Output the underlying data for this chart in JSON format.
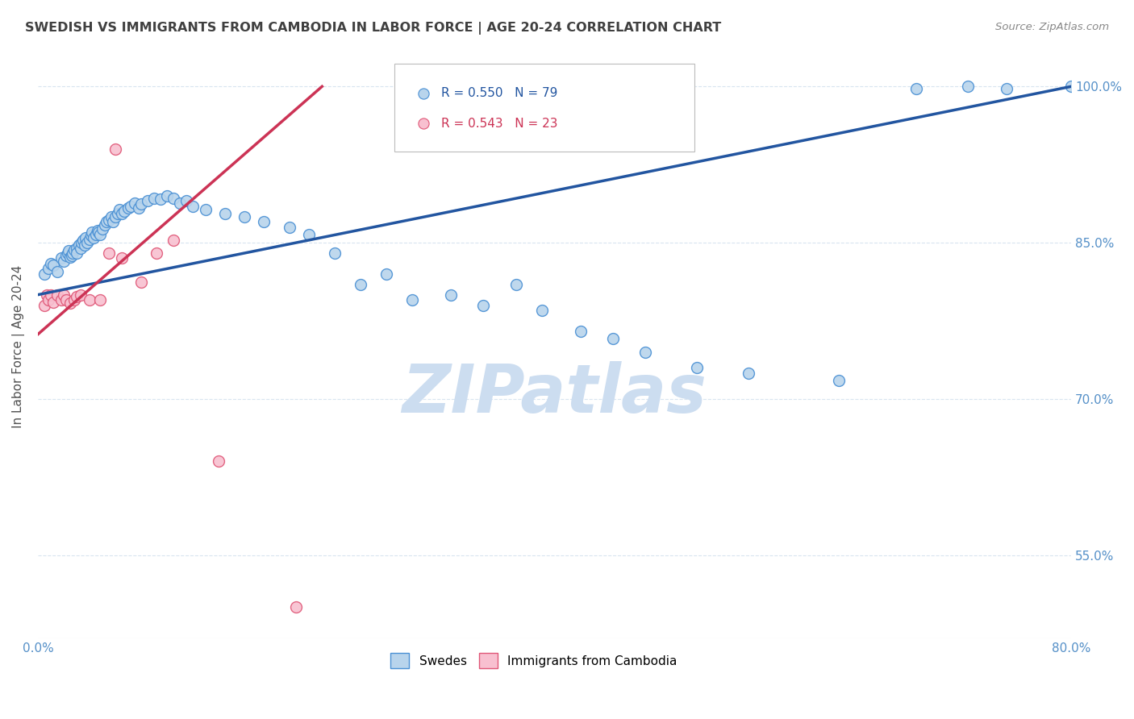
{
  "title": "SWEDISH VS IMMIGRANTS FROM CAMBODIA IN LABOR FORCE | AGE 20-24 CORRELATION CHART",
  "source": "Source: ZipAtlas.com",
  "ylabel": "In Labor Force | Age 20-24",
  "watermark": "ZIPatlas",
  "legend_blue_label": "Swedes",
  "legend_pink_label": "Immigrants from Cambodia",
  "blue_R": 0.55,
  "blue_N": 79,
  "pink_R": 0.543,
  "pink_N": 23,
  "xlim": [
    0.0,
    0.8
  ],
  "ylim": [
    0.47,
    1.03
  ],
  "ytick_vals": [
    0.55,
    0.7,
    0.85,
    1.0
  ],
  "ytick_labels": [
    "55.0%",
    "70.0%",
    "85.0%",
    "100.0%"
  ],
  "xtick_vals": [
    0.0,
    0.1,
    0.2,
    0.3,
    0.4,
    0.5,
    0.6,
    0.7,
    0.8
  ],
  "xtick_labels": [
    "0.0%",
    "",
    "",
    "",
    "",
    "",
    "",
    "",
    "80.0%"
  ],
  "blue_color": "#b8d4ec",
  "blue_edge_color": "#4a90d4",
  "pink_color": "#f8c0d0",
  "pink_edge_color": "#e05878",
  "blue_line_color": "#2255a0",
  "pink_line_color": "#cc3355",
  "marker_size": 100,
  "background_color": "#ffffff",
  "grid_color": "#d8e4f0",
  "title_color": "#404040",
  "axis_label_color": "#505050",
  "tick_color": "#5590c8",
  "watermark_color": "#ccddf0",
  "watermark_fontsize": 60,
  "blue_points": [
    [
      0.005,
      0.82
    ],
    [
      0.008,
      0.825
    ],
    [
      0.01,
      0.83
    ],
    [
      0.012,
      0.828
    ],
    [
      0.015,
      0.822
    ],
    [
      0.018,
      0.835
    ],
    [
      0.02,
      0.832
    ],
    [
      0.022,
      0.838
    ],
    [
      0.023,
      0.84
    ],
    [
      0.024,
      0.842
    ],
    [
      0.025,
      0.836
    ],
    [
      0.026,
      0.838
    ],
    [
      0.027,
      0.84
    ],
    [
      0.028,
      0.843
    ],
    [
      0.03,
      0.845
    ],
    [
      0.03,
      0.84
    ],
    [
      0.032,
      0.848
    ],
    [
      0.033,
      0.845
    ],
    [
      0.034,
      0.85
    ],
    [
      0.035,
      0.852
    ],
    [
      0.036,
      0.848
    ],
    [
      0.037,
      0.855
    ],
    [
      0.038,
      0.85
    ],
    [
      0.04,
      0.853
    ],
    [
      0.041,
      0.857
    ],
    [
      0.042,
      0.86
    ],
    [
      0.043,
      0.855
    ],
    [
      0.045,
      0.858
    ],
    [
      0.046,
      0.862
    ],
    [
      0.047,
      0.86
    ],
    [
      0.048,
      0.858
    ],
    [
      0.05,
      0.863
    ],
    [
      0.052,
      0.867
    ],
    [
      0.053,
      0.87
    ],
    [
      0.055,
      0.872
    ],
    [
      0.057,
      0.875
    ],
    [
      0.058,
      0.87
    ],
    [
      0.06,
      0.875
    ],
    [
      0.062,
      0.878
    ],
    [
      0.063,
      0.882
    ],
    [
      0.065,
      0.878
    ],
    [
      0.067,
      0.88
    ],
    [
      0.07,
      0.883
    ],
    [
      0.072,
      0.885
    ],
    [
      0.075,
      0.888
    ],
    [
      0.078,
      0.883
    ],
    [
      0.08,
      0.887
    ],
    [
      0.085,
      0.89
    ],
    [
      0.09,
      0.893
    ],
    [
      0.095,
      0.892
    ],
    [
      0.1,
      0.895
    ],
    [
      0.105,
      0.893
    ],
    [
      0.11,
      0.888
    ],
    [
      0.115,
      0.89
    ],
    [
      0.12,
      0.885
    ],
    [
      0.13,
      0.882
    ],
    [
      0.145,
      0.878
    ],
    [
      0.16,
      0.875
    ],
    [
      0.175,
      0.87
    ],
    [
      0.195,
      0.865
    ],
    [
      0.21,
      0.858
    ],
    [
      0.23,
      0.84
    ],
    [
      0.25,
      0.81
    ],
    [
      0.27,
      0.82
    ],
    [
      0.29,
      0.795
    ],
    [
      0.32,
      0.8
    ],
    [
      0.345,
      0.79
    ],
    [
      0.37,
      0.81
    ],
    [
      0.39,
      0.785
    ],
    [
      0.42,
      0.765
    ],
    [
      0.445,
      0.758
    ],
    [
      0.47,
      0.745
    ],
    [
      0.51,
      0.73
    ],
    [
      0.55,
      0.725
    ],
    [
      0.62,
      0.718
    ],
    [
      0.68,
      0.998
    ],
    [
      0.72,
      1.0
    ],
    [
      0.75,
      0.998
    ],
    [
      0.8,
      1.0
    ]
  ],
  "pink_points": [
    [
      0.005,
      0.79
    ],
    [
      0.007,
      0.8
    ],
    [
      0.008,
      0.795
    ],
    [
      0.01,
      0.8
    ],
    [
      0.012,
      0.793
    ],
    [
      0.015,
      0.8
    ],
    [
      0.018,
      0.795
    ],
    [
      0.02,
      0.8
    ],
    [
      0.022,
      0.795
    ],
    [
      0.025,
      0.792
    ],
    [
      0.028,
      0.795
    ],
    [
      0.03,
      0.798
    ],
    [
      0.033,
      0.8
    ],
    [
      0.04,
      0.795
    ],
    [
      0.048,
      0.795
    ],
    [
      0.055,
      0.84
    ],
    [
      0.06,
      0.94
    ],
    [
      0.065,
      0.835
    ],
    [
      0.08,
      0.812
    ],
    [
      0.092,
      0.84
    ],
    [
      0.105,
      0.852
    ],
    [
      0.14,
      0.64
    ],
    [
      0.2,
      0.5
    ]
  ]
}
